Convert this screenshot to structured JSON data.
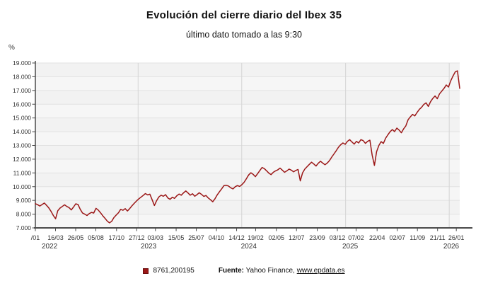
{
  "header": {
    "title": "Evolución del cierre diario del Ibex 35",
    "subtitle": "último dato tomado a las 9:30"
  },
  "y_axis_unit": "%",
  "legend": {
    "series_label": "8761,200195"
  },
  "source": {
    "label": "Fuente:",
    "text": "Yahoo Finance,",
    "link": "www.epdata.es"
  },
  "chart_data": {
    "type": "line",
    "title": "Evolución del cierre diario del Ibex 35",
    "subtitle": "último dato tomado a las 9:30",
    "ylabel": "%",
    "ylim": [
      7000,
      19000
    ],
    "y_tick_step": 1000,
    "grid": true,
    "legend_position": "bottom",
    "y_tick_labels": [
      "19.000",
      "18.000",
      "17.000",
      "16.000",
      "15.000",
      "14.000",
      "13.000",
      "12.000",
      "11.000",
      "10.000",
      "9.000",
      "8.000",
      "7.000"
    ],
    "x_tick_labels": [
      "/01",
      "16/03",
      "26/05",
      "05/08",
      "17/10",
      "27/12",
      "03/03",
      "15/05",
      "25/07",
      "04/10",
      "14/12",
      "19/02",
      "02/05",
      "12/07",
      "23/09",
      "03/12",
      "07/02",
      "22/04",
      "02/07",
      "11/09",
      "21/11",
      "26/01"
    ],
    "x_tick_days": [
      0,
      71,
      142,
      213,
      286,
      357,
      423,
      496,
      567,
      638,
      709,
      776,
      849,
      920,
      993,
      1064,
      1130,
      1204,
      1275,
      1346,
      1417,
      1483
    ],
    "x_span_days": 1495,
    "year_labels": [
      "2022",
      "2023",
      "2024",
      "2025",
      "2026"
    ],
    "year_label_days": [
      50,
      399,
      752,
      1109,
      1465
    ],
    "year_boundary_days": [
      362,
      727,
      1093,
      1458
    ],
    "series": [
      {
        "name": "8761,200195",
        "color": "#9b1717",
        "values": [
          8761,
          8690,
          8590,
          8700,
          8810,
          8640,
          8450,
          8200,
          7900,
          7662,
          8250,
          8440,
          8560,
          8680,
          8560,
          8480,
          8310,
          8520,
          8750,
          8700,
          8350,
          8080,
          8000,
          7900,
          8040,
          8130,
          8080,
          8420,
          8300,
          8100,
          7890,
          7700,
          7500,
          7366,
          7480,
          7750,
          7930,
          8100,
          8350,
          8280,
          8400,
          8230,
          8400,
          8600,
          8780,
          8950,
          9100,
          9230,
          9360,
          9500,
          9400,
          9450,
          9050,
          8630,
          8980,
          9250,
          9380,
          9300,
          9420,
          9180,
          9080,
          9230,
          9150,
          9340,
          9460,
          9380,
          9550,
          9690,
          9540,
          9380,
          9480,
          9300,
          9420,
          9560,
          9440,
          9290,
          9360,
          9180,
          9050,
          8900,
          9120,
          9400,
          9630,
          9850,
          10080,
          10100,
          10050,
          9920,
          9840,
          9990,
          10080,
          10020,
          10150,
          10320,
          10580,
          10850,
          11010,
          10900,
          10730,
          10950,
          11180,
          11400,
          11310,
          11150,
          10980,
          10880,
          11050,
          11150,
          11230,
          11350,
          11200,
          11050,
          11150,
          11280,
          11200,
          11080,
          11180,
          11250,
          10420,
          11000,
          11280,
          11450,
          11620,
          11780,
          11650,
          11500,
          11700,
          11850,
          11720,
          11595,
          11720,
          11900,
          12150,
          12380,
          12620,
          12870,
          13050,
          13180,
          13080,
          13300,
          13420,
          13250,
          13100,
          13300,
          13180,
          13420,
          13350,
          13150,
          13300,
          13380,
          12300,
          11550,
          12550,
          13000,
          13280,
          13150,
          13520,
          13770,
          14000,
          14160,
          14010,
          14260,
          14120,
          13920,
          14200,
          14420,
          14870,
          15080,
          15260,
          15150,
          15400,
          15620,
          15770,
          15980,
          16100,
          15840,
          16180,
          16420,
          16600,
          16400,
          16750,
          16950,
          17150,
          17400,
          17250,
          17700,
          18050,
          18350,
          18430,
          17150
        ]
      }
    ]
  }
}
